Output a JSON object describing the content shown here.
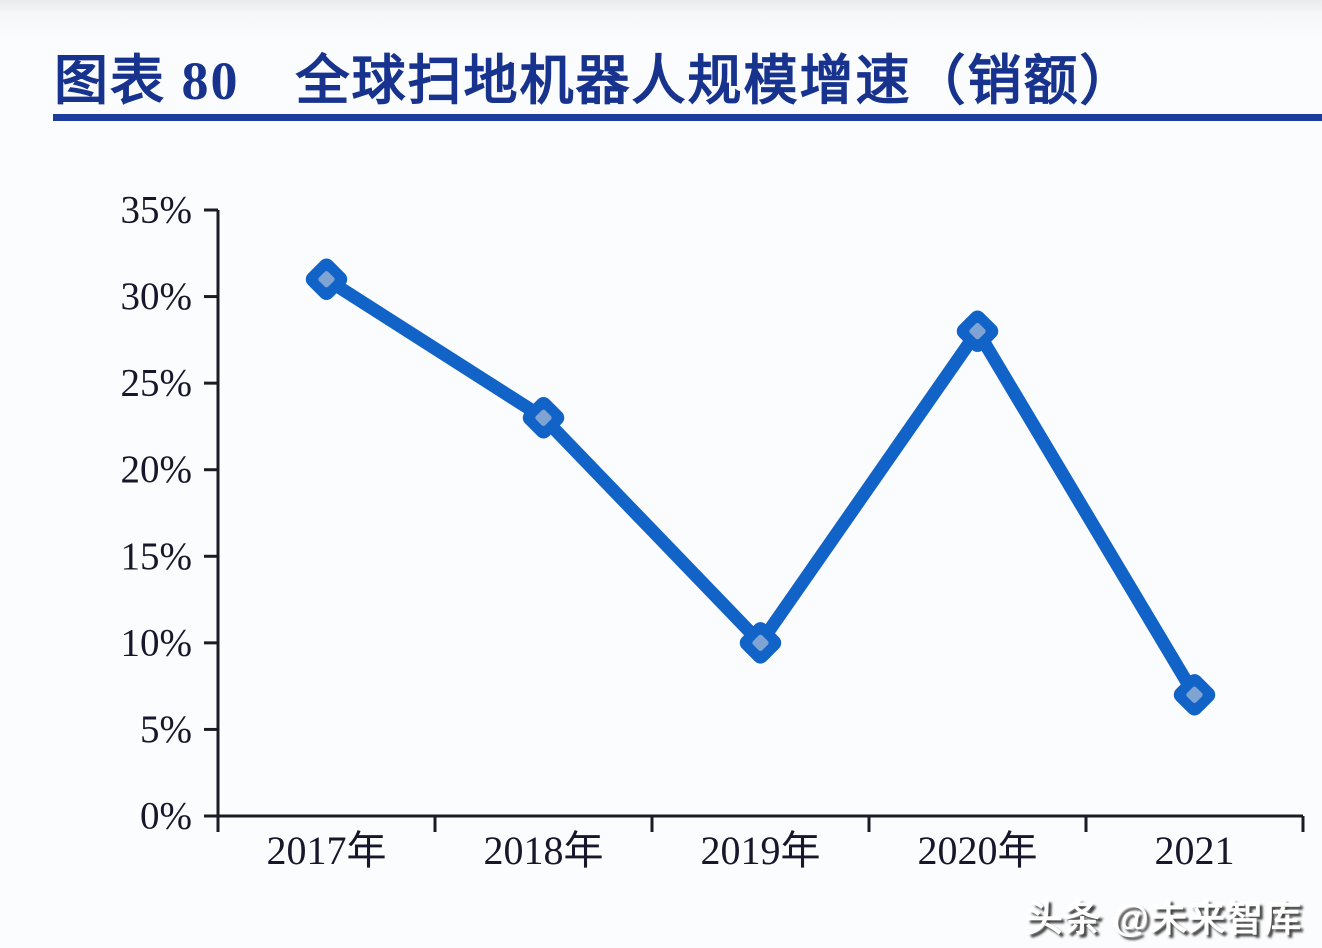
{
  "header": {
    "title": "图表 80　全球扫地机器人规模增速（销额）"
  },
  "chart_data": {
    "type": "line",
    "title": "全球扫地机器人规模增速（销额）",
    "figure_label": "图表 80",
    "categories": [
      "2017年",
      "2018年",
      "2019年",
      "2020年",
      "2021"
    ],
    "values": [
      31,
      23,
      10,
      28,
      7
    ],
    "unit": "%",
    "xlabel": "",
    "ylabel": "",
    "ylim": [
      0,
      35
    ],
    "ytick_step": 5,
    "ytick_labels": [
      "0%",
      "5%",
      "10%",
      "15%",
      "20%",
      "25%",
      "30%",
      "35%"
    ],
    "grid": false,
    "legend_position": "none",
    "marker": "diamond",
    "colors": {
      "line": "#1263C7",
      "marker_outer": "#1263C7",
      "marker_inner": "#7FA3D2",
      "axis": "#1b1b26",
      "tick_label": "#17172B",
      "title": "#17338E",
      "rule": "#1C3D9E"
    }
  },
  "watermark": {
    "text": "头条 @未来智库"
  }
}
